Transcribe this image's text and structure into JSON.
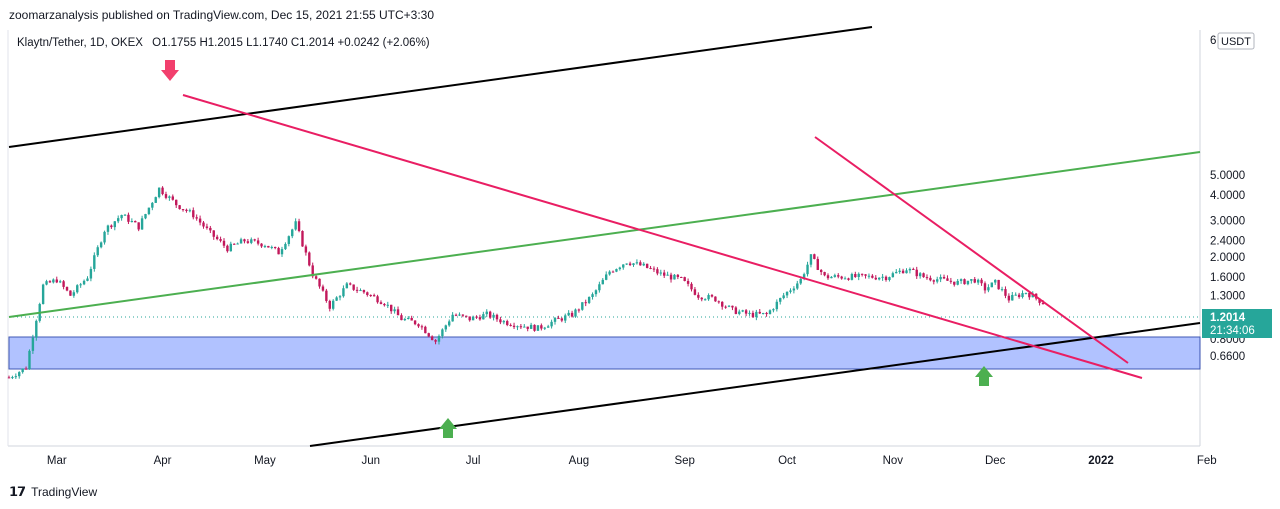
{
  "header": {
    "published": "zoomarzanalysis published on TradingView.com, Dec 15, 2021 21:55 UTC+3:30"
  },
  "legend": {
    "symbol": "Klaytn/Tether, 1D, OKEX",
    "ohlc": "O1.1755  H1.2015  L1.1740  C1.2014  +0.0242 (+2.06%)"
  },
  "price_axis": {
    "currency": "USDT",
    "ticks": [
      "5.0000",
      "4.0000",
      "3.0000",
      "2.4000",
      "2.0000",
      "1.6000",
      "1.3000",
      "1.0000",
      "0.8000",
      "0.6600"
    ],
    "top_partial": "6"
  },
  "price_label": {
    "price": "1.2014",
    "countdown": "21:34:06",
    "color": "#26a69a"
  },
  "footer": {
    "brand": "TradingView",
    "icon": "tradingview-logo-icon"
  },
  "colors": {
    "up": "#26a69a",
    "down": "#c2185b",
    "trend_pink": "#e91e63",
    "channel_green": "#4caf50",
    "channel_black": "#000000",
    "zone": "#a4b8ff",
    "arrow_down": "#f23f6d",
    "arrow_up": "#4caf50"
  },
  "chart_data": {
    "type": "candlestick",
    "symbol": "Klaytn/Tether",
    "timeframe": "1D",
    "exchange": "OKEX",
    "y_scale": "log",
    "ylim": [
      0.5,
      6.2
    ],
    "x_labels": [
      "Mar",
      "Apr",
      "May",
      "Jun",
      "Jul",
      "Aug",
      "Sep",
      "Oct",
      "Nov",
      "Dec",
      "2022",
      "Feb"
    ],
    "last": {
      "open": 1.1755,
      "high": 1.2015,
      "low": 1.174,
      "close": 1.2014,
      "change": 0.0242,
      "change_pct": 2.06
    },
    "approx_close_path": [
      [
        "2021-02-15",
        0.52
      ],
      [
        "2021-02-20",
        0.58
      ],
      [
        "2021-02-25",
        1.45
      ],
      [
        "2021-03-01",
        1.55
      ],
      [
        "2021-03-05",
        1.3
      ],
      [
        "2021-03-10",
        1.6
      ],
      [
        "2021-03-15",
        2.7
      ],
      [
        "2021-03-20",
        3.2
      ],
      [
        "2021-03-25",
        2.8
      ],
      [
        "2021-03-31",
        4.3
      ],
      [
        "2021-04-05",
        3.6
      ],
      [
        "2021-04-10",
        3.2
      ],
      [
        "2021-04-15",
        2.6
      ],
      [
        "2021-04-20",
        2.2
      ],
      [
        "2021-04-25",
        2.4
      ],
      [
        "2021-05-01",
        2.3
      ],
      [
        "2021-05-05",
        2.1
      ],
      [
        "2021-05-10",
        2.9
      ],
      [
        "2021-05-15",
        1.65
      ],
      [
        "2021-05-20",
        1.15
      ],
      [
        "2021-05-25",
        1.45
      ],
      [
        "2021-05-30",
        1.35
      ],
      [
        "2021-06-05",
        1.2
      ],
      [
        "2021-06-10",
        1.0
      ],
      [
        "2021-06-15",
        0.95
      ],
      [
        "2021-06-20",
        0.78
      ],
      [
        "2021-06-25",
        1.05
      ],
      [
        "2021-06-30",
        1.0
      ],
      [
        "2021-07-05",
        1.05
      ],
      [
        "2021-07-10",
        0.97
      ],
      [
        "2021-07-15",
        0.93
      ],
      [
        "2021-07-20",
        0.9
      ],
      [
        "2021-07-25",
        0.98
      ],
      [
        "2021-07-30",
        1.05
      ],
      [
        "2021-08-05",
        1.3
      ],
      [
        "2021-08-10",
        1.7
      ],
      [
        "2021-08-15",
        1.9
      ],
      [
        "2021-08-20",
        1.8
      ],
      [
        "2021-08-25",
        1.65
      ],
      [
        "2021-08-31",
        1.55
      ],
      [
        "2021-09-05",
        1.3
      ],
      [
        "2021-09-10",
        1.25
      ],
      [
        "2021-09-15",
        1.1
      ],
      [
        "2021-09-20",
        1.05
      ],
      [
        "2021-09-25",
        1.05
      ],
      [
        "2021-09-30",
        1.3
      ],
      [
        "2021-10-05",
        1.55
      ],
      [
        "2021-10-08",
        2.0
      ],
      [
        "2021-10-12",
        1.6
      ],
      [
        "2021-10-20",
        1.6
      ],
      [
        "2021-10-30",
        1.6
      ],
      [
        "2021-11-05",
        1.75
      ],
      [
        "2021-11-10",
        1.6
      ],
      [
        "2021-11-15",
        1.55
      ],
      [
        "2021-11-20",
        1.5
      ],
      [
        "2021-11-25",
        1.55
      ],
      [
        "2021-11-28",
        1.4
      ],
      [
        "2021-12-01",
        1.5
      ],
      [
        "2021-12-05",
        1.25
      ],
      [
        "2021-12-10",
        1.35
      ],
      [
        "2021-12-15",
        1.2014
      ]
    ],
    "annotations": [
      {
        "type": "horizontal-zone",
        "from": 0.87,
        "to": 1.05
      },
      {
        "type": "trendline",
        "name": "upper-channel",
        "color": "black"
      },
      {
        "type": "trendline",
        "name": "lower-channel",
        "color": "black"
      },
      {
        "type": "trendline",
        "name": "mid-channel",
        "color": "green"
      },
      {
        "type": "trendline",
        "name": "descending-resistance",
        "color": "pink"
      },
      {
        "type": "trendline",
        "name": "short-descending-resistance",
        "color": "pink"
      },
      {
        "type": "arrow",
        "direction": "down",
        "at": "2021-03-31"
      },
      {
        "type": "arrow",
        "direction": "up",
        "at": "2021-06-22"
      },
      {
        "type": "arrow",
        "direction": "up",
        "at": "2021-12-01"
      }
    ]
  }
}
